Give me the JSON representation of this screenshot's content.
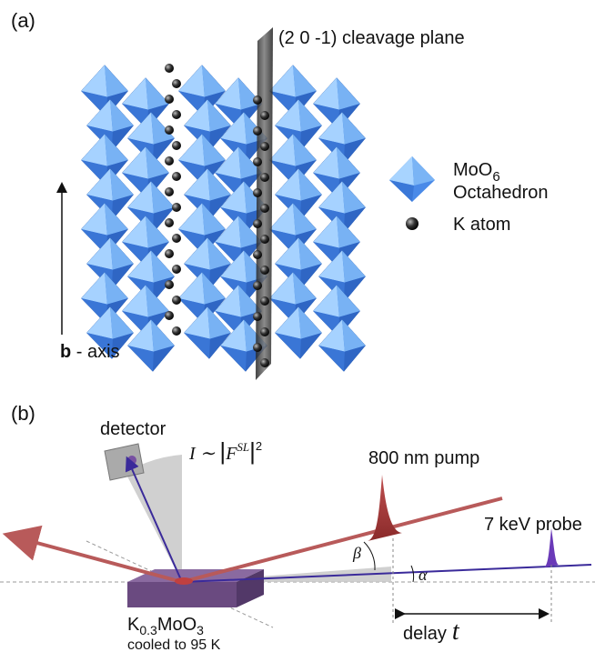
{
  "panel_a": {
    "label": "(a)",
    "plane_label": "(2 0 -1) cleavage plane",
    "legend": {
      "octahedron_formula": "MoO",
      "octahedron_subscript": "6",
      "octahedron_name": "Octahedron",
      "atom": "K atom"
    },
    "axis_bold": "b",
    "axis_rest": " - axis"
  },
  "panel_b": {
    "label": "(b)",
    "detector": "detector",
    "intensity": {
      "lhs": "I ∼ ",
      "bar_open": "|",
      "symbol": "F",
      "superscript": "SL",
      "bar_close": "|",
      "power": "2"
    },
    "pump": "800 nm pump",
    "probe": "7 keV probe",
    "beta": "β",
    "alpha": "α",
    "delay": "delay",
    "delay_symbol": "t",
    "sample": {
      "element": "K",
      "subscript": "0.3",
      "rest": "MoO",
      "subscript2": "3",
      "note": "cooled to 95 K"
    }
  }
}
